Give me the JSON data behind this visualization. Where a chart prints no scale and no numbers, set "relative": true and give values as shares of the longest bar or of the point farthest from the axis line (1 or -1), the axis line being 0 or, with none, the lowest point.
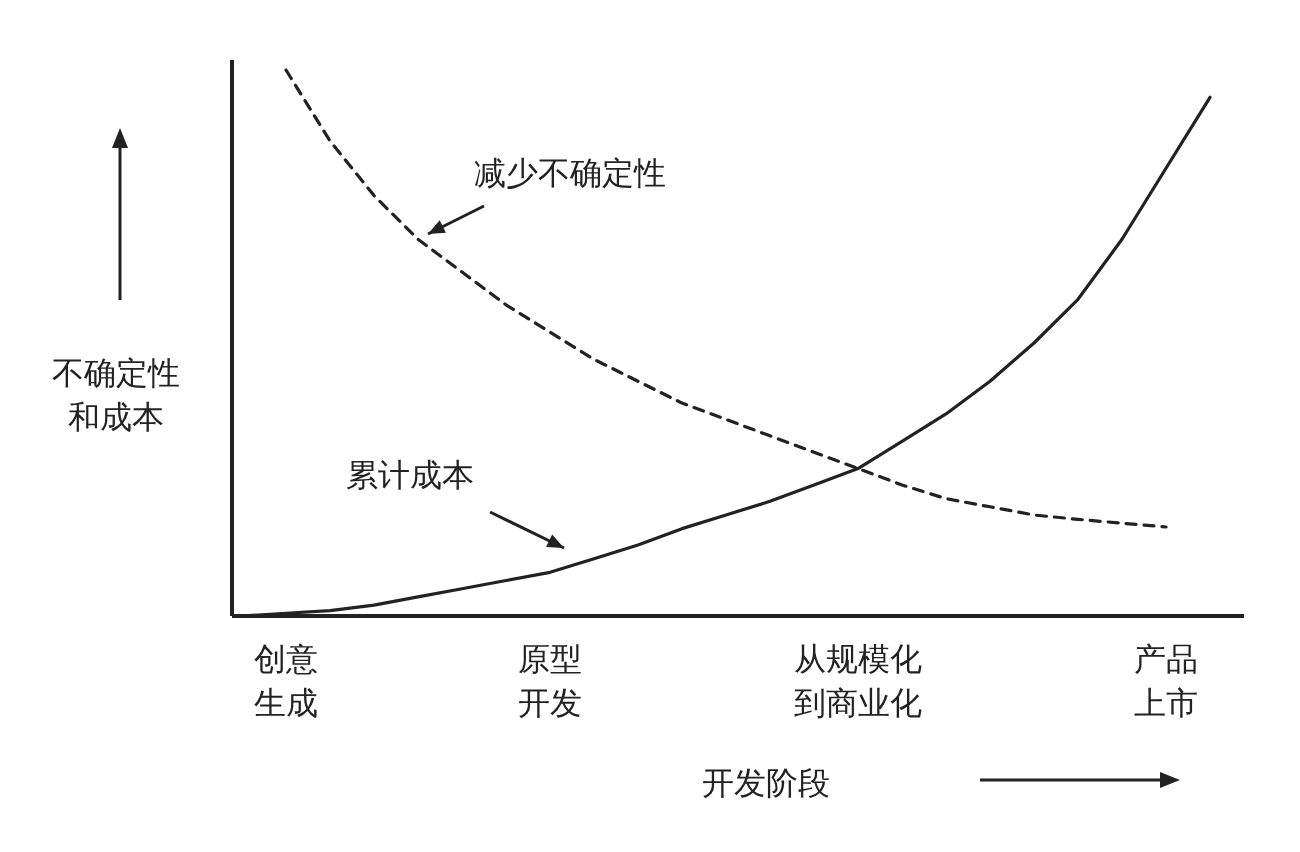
{
  "chart_data": {
    "type": "line",
    "relative": true,
    "categories": [
      null,
      "创意生成",
      null,
      null,
      null,
      null,
      null,
      "原型开发",
      null,
      null,
      null,
      null,
      null,
      null,
      "从规模化到商业化",
      null,
      null,
      null,
      null,
      null,
      null,
      "产品上市",
      null
    ],
    "xlabel": "开发阶段",
    "ylabel": "不确定性和成本",
    "series": [
      {
        "name": "减少不确定性",
        "color": "#222222",
        "line_style": "dashed",
        "values": [
          null,
          1.0,
          0.87,
          0.77,
          0.69,
          0.63,
          0.57,
          0.52,
          0.47,
          0.43,
          0.39,
          0.36,
          0.33,
          0.3,
          0.27,
          0.24,
          0.215,
          0.2,
          0.185,
          0.177,
          0.17,
          0.163,
          null
        ]
      },
      {
        "name": "累计成本",
        "color": "#222222",
        "line_style": "solid",
        "values": [
          0,
          0.005,
          0.01,
          0.02,
          0.035,
          0.05,
          0.065,
          0.08,
          0.105,
          0.13,
          0.16,
          0.185,
          0.21,
          0.24,
          0.27,
          0.32,
          0.37,
          0.43,
          0.5,
          0.58,
          0.69,
          0.82,
          0.95
        ]
      }
    ]
  }
}
